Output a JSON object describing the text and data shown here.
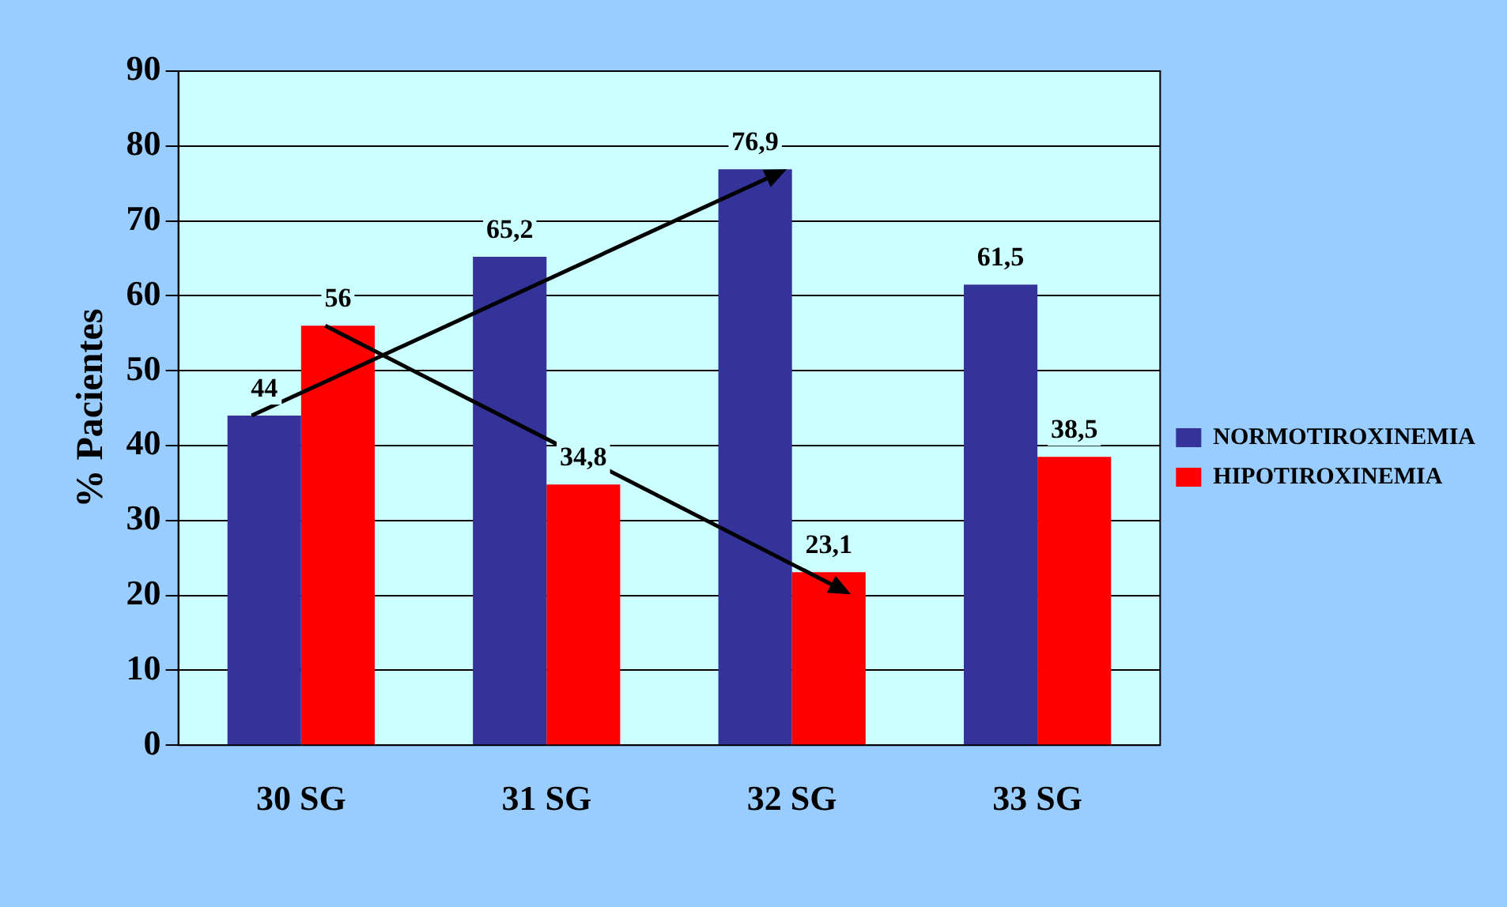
{
  "chart_data": {
    "type": "bar",
    "ylabel": "% Pacientes",
    "categories": [
      "30 SG",
      "31 SG",
      "32 SG",
      "33 SG"
    ],
    "series": [
      {
        "name": "NORMOTIROXINEMIA",
        "color": "#333399",
        "values": [
          44,
          65.2,
          76.9,
          61.5
        ],
        "value_labels": [
          "44",
          "65,2",
          "76,9",
          "61,5"
        ]
      },
      {
        "name": "HIPOTIROXINEMIA",
        "color": "#ff0000",
        "values": [
          56,
          34.8,
          23.1,
          38.5
        ],
        "value_labels": [
          "56",
          "34,8",
          "23,1",
          "38,5"
        ]
      }
    ],
    "ylim": [
      0,
      90
    ],
    "yticks": [
      0,
      10,
      20,
      30,
      40,
      50,
      60,
      70,
      80,
      90
    ],
    "grid": "y",
    "legend": "right"
  }
}
